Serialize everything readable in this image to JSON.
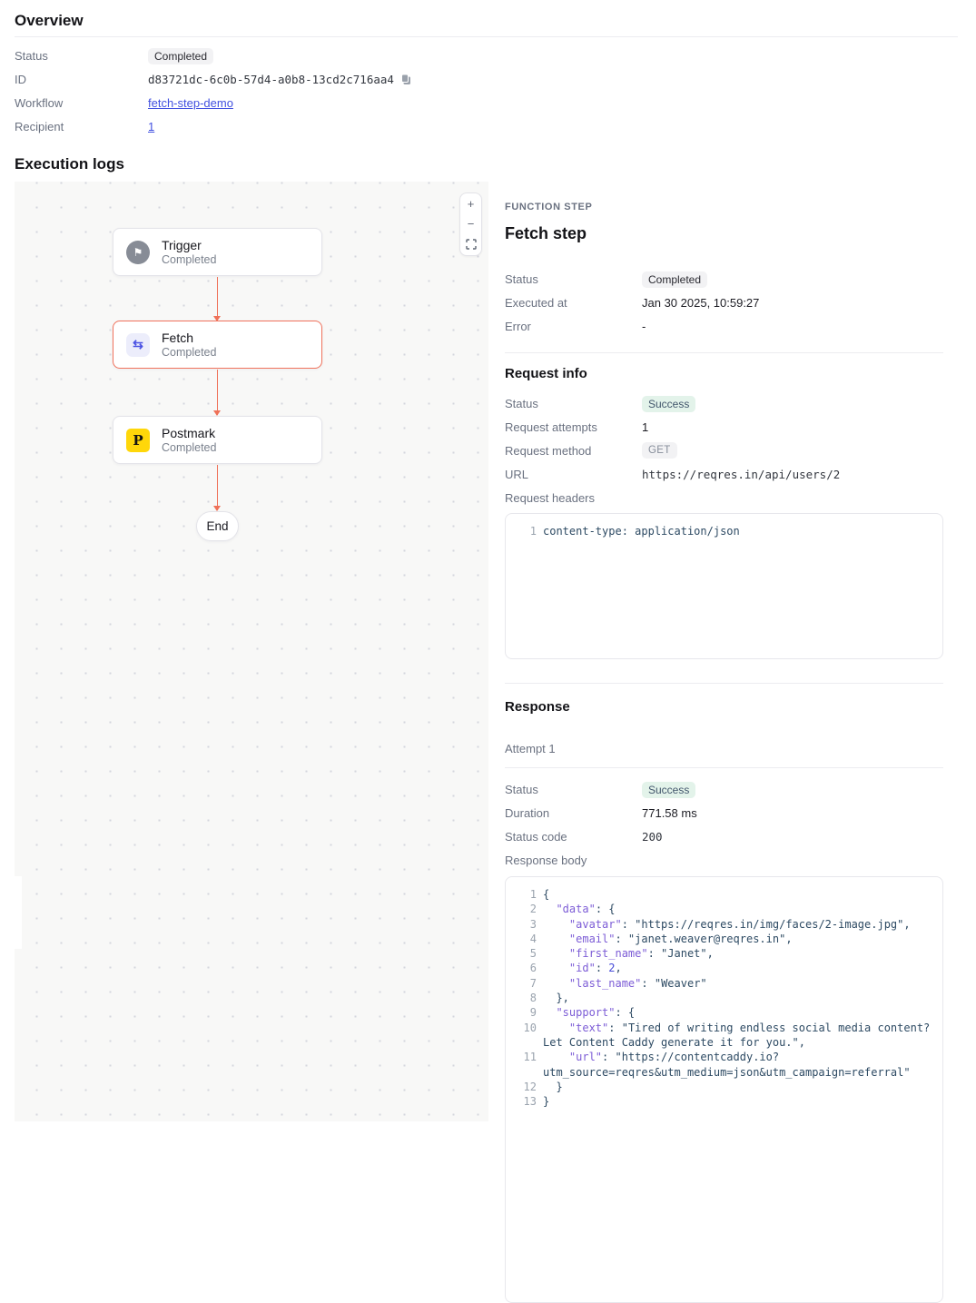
{
  "overview": {
    "title": "Overview",
    "rows": {
      "status": {
        "label": "Status",
        "value": "Completed"
      },
      "id": {
        "label": "ID",
        "value": "d83721dc-6c0b-57d4-a0b8-13cd2c716aa4"
      },
      "workflow": {
        "label": "Workflow",
        "value": "fetch-step-demo"
      },
      "recipient": {
        "label": "Recipient",
        "value": "1"
      }
    }
  },
  "execution": {
    "title": "Execution logs",
    "flow": {
      "nodes": {
        "trigger": {
          "title": "Trigger",
          "subtitle": "Completed",
          "icon_glyph": "⚑"
        },
        "fetch": {
          "title": "Fetch",
          "subtitle": "Completed",
          "icon_glyph": "⇆"
        },
        "postmark": {
          "title": "Postmark",
          "subtitle": "Completed",
          "icon_glyph": "P"
        }
      },
      "end_label": "End",
      "controls": {
        "zoom_in": "+",
        "zoom_out": "−"
      }
    }
  },
  "detail": {
    "kicker": "FUNCTION STEP",
    "title": "Fetch step",
    "rows": {
      "status": {
        "label": "Status",
        "value": "Completed"
      },
      "executed_at": {
        "label": "Executed at",
        "value": "Jan 30 2025, 10:59:27"
      },
      "error": {
        "label": "Error",
        "value": "-"
      }
    },
    "request_info": {
      "title": "Request info",
      "rows": {
        "status": {
          "label": "Status",
          "value": "Success"
        },
        "attempts": {
          "label": "Request attempts",
          "value": "1"
        },
        "method": {
          "label": "Request method",
          "value": "GET"
        },
        "url": {
          "label": "URL",
          "value": "https://reqres.in/api/users/2"
        },
        "headers": {
          "label": "Request headers"
        }
      },
      "headers_code": [
        {
          "n": "1",
          "t": "content-type: application/json"
        }
      ]
    },
    "response": {
      "title": "Response",
      "attempt_label": "Attempt 1",
      "rows": {
        "status": {
          "label": "Status",
          "value": "Success"
        },
        "duration": {
          "label": "Duration",
          "value": "771.58 ms"
        },
        "code": {
          "label": "Status code",
          "value": "200"
        },
        "body": {
          "label": "Response body"
        }
      },
      "body_code": [
        {
          "n": "1",
          "t": "{"
        },
        {
          "n": "2",
          "t": "  \"data\": {"
        },
        {
          "n": "3",
          "t": "    \"avatar\": \"https://reqres.in/img/faces/2-image.jpg\","
        },
        {
          "n": "4",
          "t": "    \"email\": \"janet.weaver@reqres.in\","
        },
        {
          "n": "5",
          "t": "    \"first_name\": \"Janet\","
        },
        {
          "n": "6",
          "t": "    \"id\": 2,"
        },
        {
          "n": "7",
          "t": "    \"last_name\": \"Weaver\""
        },
        {
          "n": "8",
          "t": "  },"
        },
        {
          "n": "9",
          "t": "  \"support\": {"
        },
        {
          "n": "10",
          "t": "    \"text\": \"Tired of writing endless social media content?"
        },
        {
          "n": "",
          "t": "Let Content Caddy generate it for you.\","
        },
        {
          "n": "11",
          "t": "    \"url\": \"https://contentcaddy.io?"
        },
        {
          "n": "",
          "t": "utm_source=reqres&utm_medium=json&utm_campaign=referral\""
        },
        {
          "n": "12",
          "t": "  }"
        },
        {
          "n": "13",
          "t": "}"
        }
      ]
    }
  },
  "colors": {
    "accent_selected": "#f0725c",
    "link": "#4150e0",
    "badge_success_bg": "#e3f3ea",
    "badge_success_text": "#42566c",
    "badge_neutral_bg": "#f2f2f4",
    "postmark_yellow": "#ffd70a",
    "code_key": "#7c5cd6",
    "code_number": "#464bd8"
  }
}
